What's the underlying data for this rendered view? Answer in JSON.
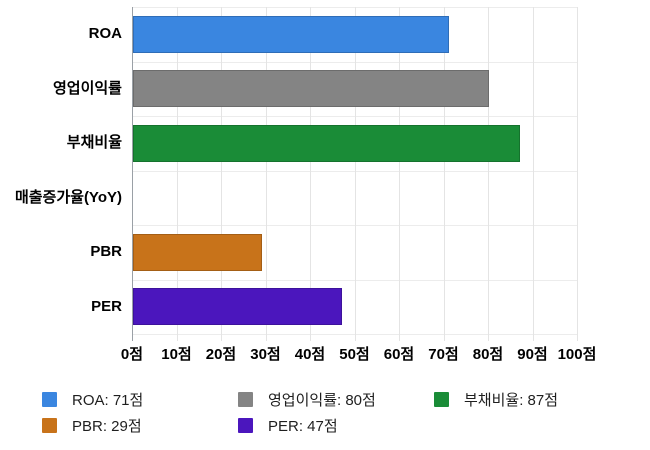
{
  "chart_data": {
    "type": "bar",
    "orientation": "horizontal",
    "title": "",
    "xlabel": "",
    "ylabel": "",
    "categories": [
      "ROA",
      "영업이익률",
      "부채비율",
      "매출증가율(YoY)",
      "PBR",
      "PER"
    ],
    "values": [
      71,
      80,
      87,
      0,
      29,
      47
    ],
    "colors": [
      "#3a86e0",
      "#848484",
      "#1a8c37",
      null,
      "#c8731a",
      "#4b16bd"
    ],
    "value_suffix": "점",
    "xlim": [
      0,
      100
    ],
    "x_tick_labels": [
      "0점",
      "10점",
      "20점",
      "30점",
      "40점",
      "50점",
      "60점",
      "70점",
      "80점",
      "90점",
      "100점"
    ],
    "grid": true,
    "legend_position": "bottom"
  },
  "legend": {
    "items": [
      {
        "label": "ROA: 71점",
        "color": "#3a86e0"
      },
      {
        "label": "영업이익률: 80점",
        "color": "#848484"
      },
      {
        "label": "부채비율: 87점",
        "color": "#1a8c37"
      },
      {
        "label": "PBR: 29점",
        "color": "#c8731a"
      },
      {
        "label": "PER: 47점",
        "color": "#4b16bd"
      }
    ]
  }
}
